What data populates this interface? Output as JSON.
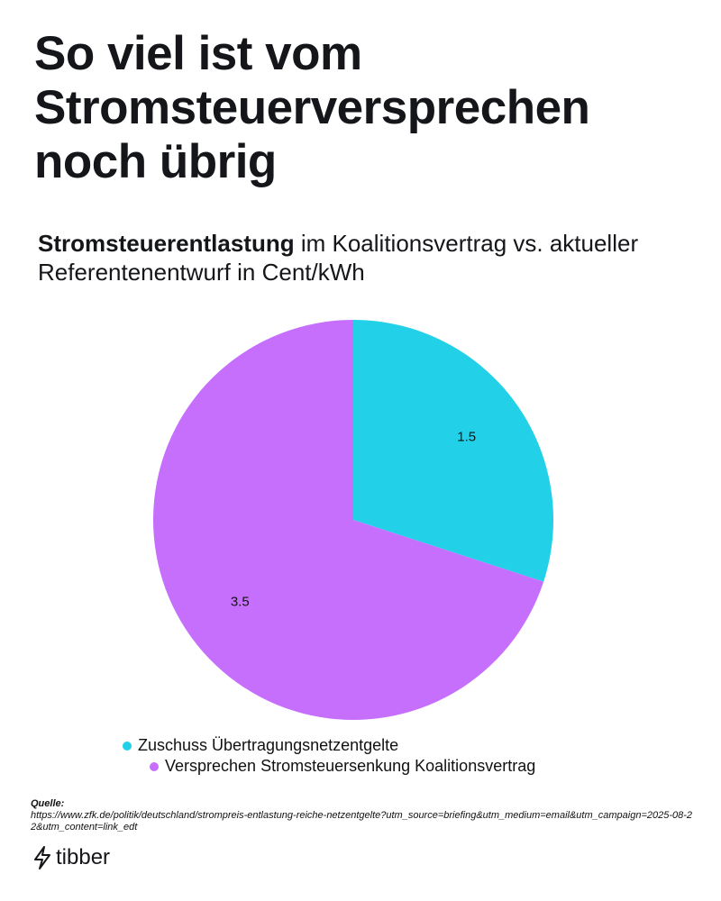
{
  "chart_data": {
    "type": "pie",
    "title": "So viel ist vom Stromsteuerversprechen noch übrig",
    "subtitle_bold": "Stromsteuerentlastung",
    "subtitle": "im Koalitionsvertrag vs. aktueller Referentenentwurf in Cent/kWh",
    "categories": [
      "Zuschuss Übertragungsnetzentgelte",
      "Versprechen Stromsteuersenkung Koalitionsvertrag"
    ],
    "values": [
      1.5,
      3.5
    ],
    "colors": [
      "#22d1e8",
      "#c66ffd"
    ],
    "legend": "bottom-left"
  },
  "source": {
    "label": "Quelle:",
    "url": "https://www.zfk.de/politik/deutschland/strompreis-entlastung-reiche-netzentgelte?utm_source=briefing&utm_medium=email&utm_campaign=2025-08-22&utm_content=link_edt"
  },
  "logo": {
    "text": "tibber"
  }
}
